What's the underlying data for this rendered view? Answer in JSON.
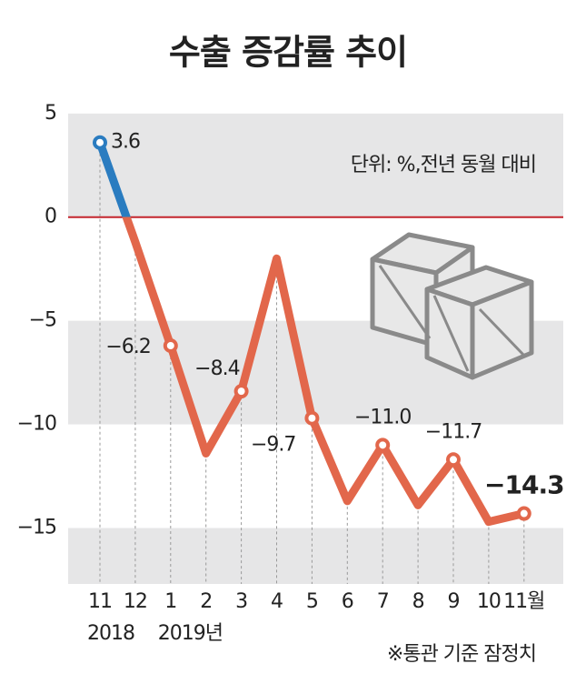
{
  "chart_data": {
    "type": "line",
    "title": "수출 증감률 추이",
    "unit_note": "단위: %,전년 동월 대비",
    "source_note": "※통관 기준 잠정치",
    "categories": [
      "11",
      "12",
      "1",
      "2",
      "3",
      "4",
      "5",
      "6",
      "7",
      "8",
      "9",
      "10",
      "11월"
    ],
    "x_sublabels": [
      "2018",
      null,
      "2019년",
      null,
      null,
      null,
      null,
      null,
      null,
      null,
      null,
      null,
      null
    ],
    "values": [
      3.6,
      -1.2,
      -6.2,
      -11.4,
      -8.4,
      -2.0,
      -9.7,
      -13.7,
      -11.0,
      -13.9,
      -11.7,
      -14.7,
      -14.3
    ],
    "value_labels": [
      "3.6",
      null,
      "−6.2",
      null,
      "−8.4",
      null,
      "−9.7",
      null,
      "−11.0",
      null,
      "−11.7",
      null,
      "−14.3"
    ],
    "color": "#e2674b",
    "positive_color": "#2a7cc0",
    "zero_line_color": "#c4262e",
    "ylim": [
      -17.7,
      5.3
    ],
    "yticks": [
      {
        "value": -15,
        "label": "−15"
      },
      {
        "value": -10,
        "label": "−10"
      },
      {
        "value": -5,
        "label": "−5"
      },
      0,
      5
    ]
  }
}
